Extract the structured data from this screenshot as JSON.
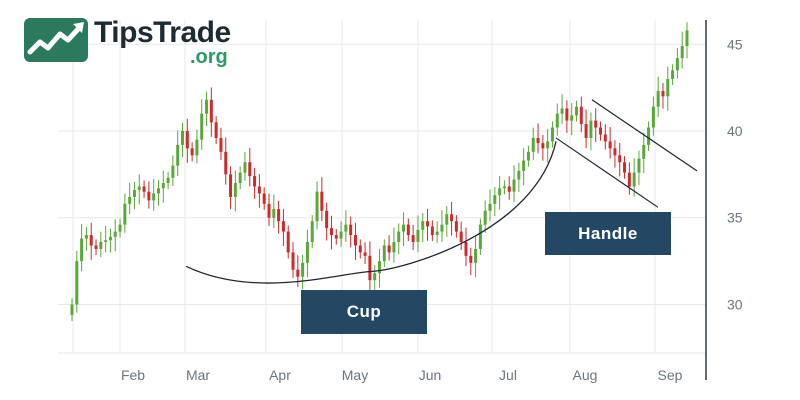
{
  "logo": {
    "name": "TipsTrade",
    "suffix": ".org"
  },
  "annotations": {
    "cup_label": "Cup",
    "handle_label": "Handle"
  },
  "colors": {
    "up": "#5aa83a",
    "down": "#cc2b2b",
    "grid": "#e8e8e8",
    "axis": "#2b3a4a",
    "curve": "#1d2633",
    "label_bg": "#244863"
  },
  "chart_data": {
    "type": "candlestick",
    "title": "",
    "xlabel": "",
    "ylabel": "",
    "x_ticks": [
      "Feb",
      "Mar",
      "Apr",
      "May",
      "Jun",
      "Jul",
      "Aug",
      "Sep"
    ],
    "y_ticks": [
      30,
      35,
      40,
      45
    ],
    "ylim": [
      27.2,
      46.4
    ],
    "grid": true,
    "y_axis_position": "right",
    "pattern": "cup-and-handle",
    "close_series": [
      30.0,
      32.5,
      33.8,
      34.0,
      33.4,
      33.2,
      33.6,
      33.7,
      33.9,
      34.2,
      34.6,
      35.8,
      36.2,
      36.6,
      36.8,
      36.5,
      36.0,
      36.4,
      36.7,
      37.0,
      37.3,
      38.0,
      39.2,
      40.0,
      39.0,
      38.6,
      39.5,
      41.0,
      41.8,
      40.5,
      39.6,
      38.8,
      37.5,
      36.2,
      37.0,
      37.6,
      38.2,
      37.4,
      36.8,
      36.4,
      35.8,
      35.0,
      35.5,
      34.8,
      34.2,
      33.0,
      32.0,
      31.6,
      32.4,
      33.6,
      34.8,
      36.5,
      35.4,
      34.4,
      34.0,
      33.8,
      34.2,
      34.6,
      34.0,
      33.4,
      33.0,
      32.8,
      31.4,
      31.8,
      32.5,
      33.4,
      33.0,
      33.6,
      34.2,
      34.6,
      34.0,
      33.6,
      34.3,
      34.8,
      34.5,
      34.0,
      34.2,
      34.6,
      35.2,
      34.8,
      34.2,
      33.6,
      32.8,
      32.4,
      33.2,
      34.6,
      35.4,
      35.8,
      36.3,
      36.7,
      36.8,
      36.5,
      37.2,
      37.7,
      38.3,
      38.8,
      39.6,
      39.3,
      39.0,
      39.4,
      40.2,
      41.0,
      41.3,
      40.6,
      40.9,
      41.4,
      40.4,
      39.6,
      40.6,
      40.2,
      39.8,
      39.4,
      39.0,
      38.6,
      38.2,
      37.6,
      36.8,
      37.6,
      38.4,
      39.2,
      40.2,
      41.4,
      42.3,
      42.0,
      43.0,
      43.5,
      44.2,
      44.9,
      45.8
    ],
    "cup_start": 32.2,
    "cup_low": 31.9,
    "cup_end": 39.4,
    "handle_channel": {
      "upper": [
        [
          40.6,
          41.8
        ],
        [
          45.8,
          37.7
        ]
      ],
      "lower": [
        [
          40.0,
          39.6
        ],
        [
          42.5,
          35.6
        ]
      ]
    }
  }
}
